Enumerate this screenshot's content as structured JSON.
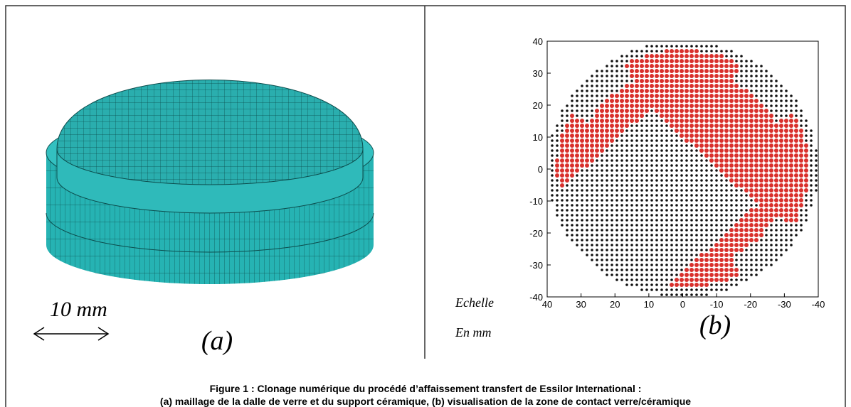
{
  "panel_a": {
    "scale_label": "10 mm",
    "label": "(a)"
  },
  "panel_b": {
    "scale_note": [
      "Echelle",
      "En mm"
    ],
    "label": "(b)"
  },
  "chart_data": {
    "type": "scatter",
    "xlim": [
      40,
      -40
    ],
    "ylim": [
      -40,
      40
    ],
    "xticks": [
      40,
      30,
      20,
      10,
      0,
      -10,
      -20,
      -30,
      -40
    ],
    "yticks": [
      40,
      30,
      20,
      10,
      0,
      -10,
      -20,
      -30,
      -40
    ]
  },
  "caption": [
    "Figure 1 : Clonage numérique du procédé d’affaissement transfert de Essilor International :",
    "(a) maillage de la dalle de verre et du support céramique, (b) visualisation de la zone de contact verre/céramique"
  ]
}
